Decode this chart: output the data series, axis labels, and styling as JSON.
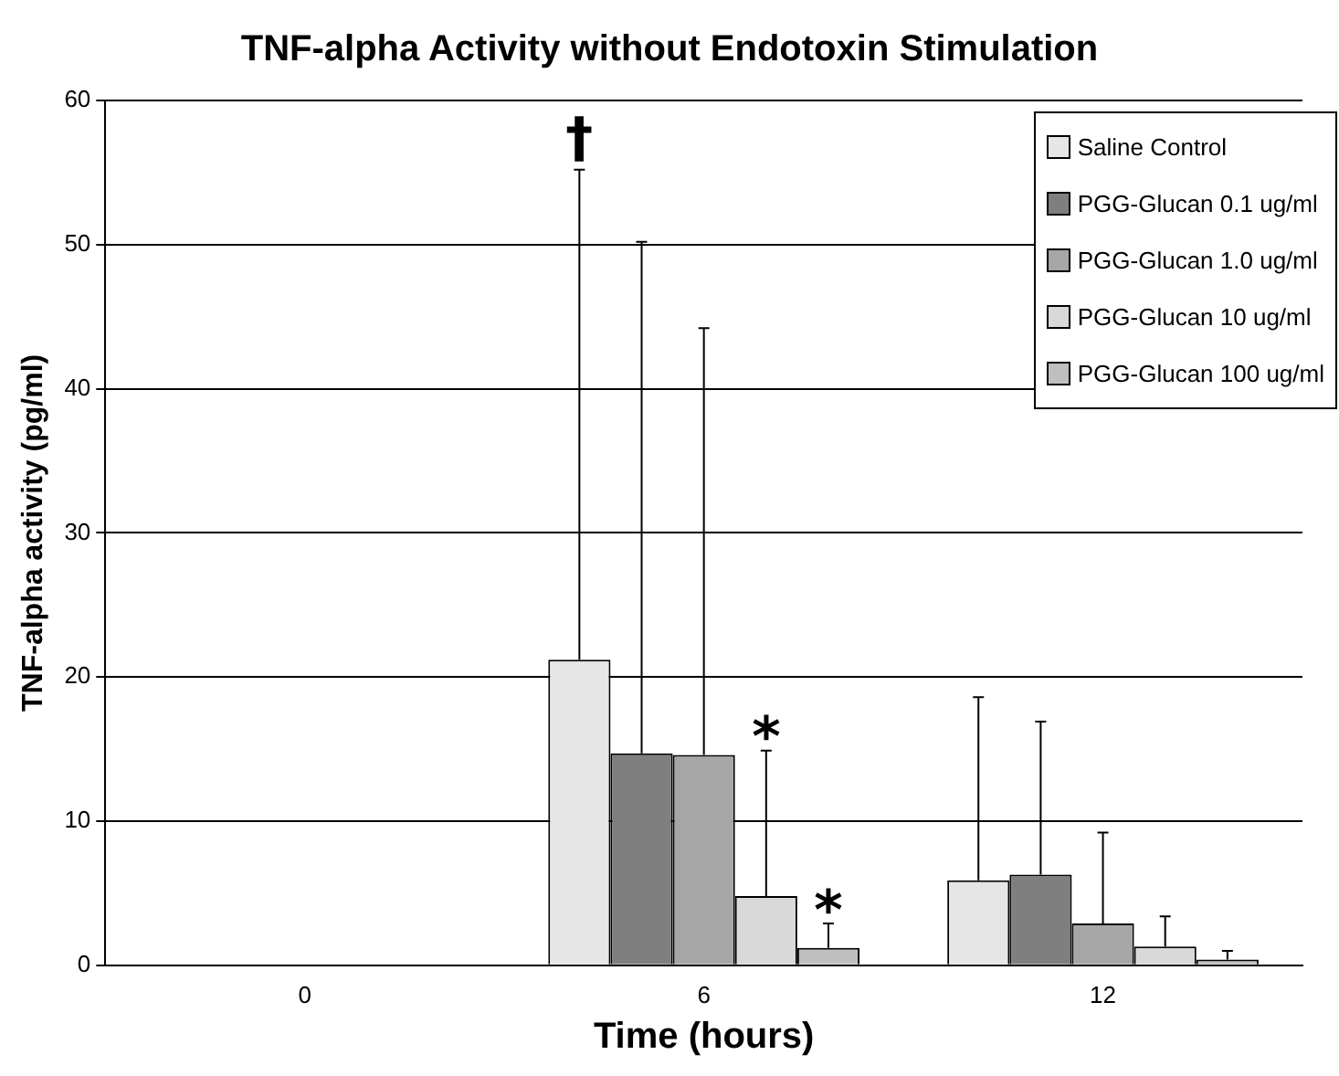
{
  "chart_data": {
    "type": "bar",
    "title": "TNF-alpha Activity without Endotoxin Stimulation",
    "xlabel": "Time (hours)",
    "ylabel": "TNF-alpha activity (pg/ml)",
    "categories": [
      "0",
      "6",
      "12"
    ],
    "series": [
      {
        "name": "Saline Control",
        "color": "#e6e6e6",
        "values": [
          0,
          21.2,
          5.9
        ],
        "errors": [
          null,
          [
            21.2,
            55.2
          ],
          [
            5.9,
            18.6
          ]
        ]
      },
      {
        "name": "PGG-Glucan 0.1 ug/ml",
        "color": "#7f7f7f",
        "values": [
          0,
          14.7,
          6.3
        ],
        "errors": [
          null,
          [
            14.7,
            50.2
          ],
          [
            6.3,
            16.9
          ]
        ]
      },
      {
        "name": "PGG-Glucan 1.0 ug/ml",
        "color": "#a6a6a6",
        "values": [
          0,
          14.6,
          2.9
        ],
        "errors": [
          null,
          [
            14.6,
            44.2
          ],
          [
            2.9,
            9.2
          ]
        ]
      },
      {
        "name": "PGG-Glucan 10 ug/ml",
        "color": "#d9d9d9",
        "values": [
          0,
          4.8,
          1.3
        ],
        "errors": [
          null,
          [
            4.8,
            14.9
          ],
          [
            1.3,
            3.4
          ]
        ]
      },
      {
        "name": "PGG-Glucan 100 ug/ml",
        "color": "#bfbfbf",
        "values": [
          0,
          1.2,
          0.4
        ],
        "errors": [
          null,
          [
            1.2,
            2.9
          ],
          [
            0.4,
            1.0
          ]
        ]
      }
    ],
    "annotations": [
      "†",
      "*",
      "*"
    ],
    "ylim": [
      0,
      60
    ],
    "yticks": [
      0,
      10,
      20,
      30,
      40,
      50,
      60
    ],
    "grid": "y",
    "legend": "top right"
  }
}
